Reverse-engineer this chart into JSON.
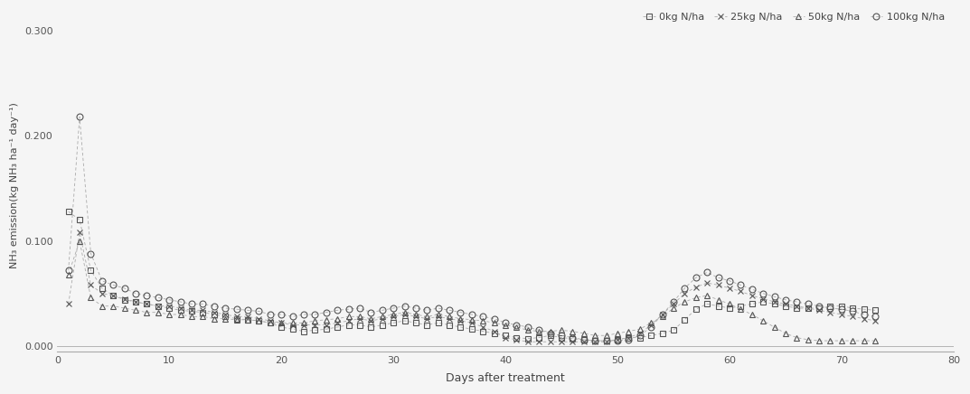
{
  "xlabel": "Days after treatment",
  "ylabel": "NH₃ emission(kg NH₃ ha⁻¹ day⁻¹)",
  "xlim": [
    0,
    80
  ],
  "ylim": [
    -0.005,
    0.31
  ],
  "yticks": [
    0.0,
    0.1,
    0.2,
    0.3
  ],
  "xticks": [
    0,
    10,
    20,
    30,
    40,
    50,
    60,
    70,
    80
  ],
  "legend_labels": [
    "0kg N/ha",
    "25kg N/ha",
    "50kg N/ha",
    "100kg N/ha"
  ],
  "series": {
    "0kg": {
      "x": [
        1,
        2,
        3,
        4,
        5,
        6,
        7,
        8,
        9,
        10,
        11,
        12,
        13,
        14,
        15,
        16,
        17,
        18,
        19,
        20,
        21,
        22,
        23,
        24,
        25,
        26,
        27,
        28,
        29,
        30,
        31,
        32,
        33,
        34,
        35,
        36,
        37,
        38,
        39,
        40,
        41,
        42,
        43,
        44,
        45,
        46,
        47,
        48,
        49,
        50,
        51,
        52,
        53,
        54,
        55,
        56,
        57,
        58,
        59,
        60,
        61,
        62,
        63,
        64,
        65,
        66,
        67,
        68,
        69,
        70,
        71,
        72,
        73
      ],
      "y": [
        0.128,
        0.12,
        0.072,
        0.055,
        0.048,
        0.044,
        0.042,
        0.04,
        0.038,
        0.036,
        0.034,
        0.033,
        0.032,
        0.03,
        0.028,
        0.026,
        0.025,
        0.024,
        0.022,
        0.018,
        0.016,
        0.014,
        0.015,
        0.016,
        0.018,
        0.02,
        0.02,
        0.018,
        0.02,
        0.022,
        0.024,
        0.022,
        0.02,
        0.022,
        0.02,
        0.018,
        0.016,
        0.014,
        0.012,
        0.01,
        0.008,
        0.007,
        0.008,
        0.01,
        0.008,
        0.007,
        0.006,
        0.005,
        0.005,
        0.006,
        0.008,
        0.008,
        0.01,
        0.012,
        0.015,
        0.025,
        0.035,
        0.04,
        0.038,
        0.036,
        0.038,
        0.04,
        0.042,
        0.04,
        0.038,
        0.036,
        0.036,
        0.036,
        0.038,
        0.038,
        0.036,
        0.035,
        0.034
      ]
    },
    "25kg": {
      "x": [
        1,
        2,
        3,
        4,
        5,
        6,
        7,
        8,
        9,
        10,
        11,
        12,
        13,
        14,
        15,
        16,
        17,
        18,
        19,
        20,
        21,
        22,
        23,
        24,
        25,
        26,
        27,
        28,
        29,
        30,
        31,
        32,
        33,
        34,
        35,
        36,
        37,
        38,
        39,
        40,
        41,
        42,
        43,
        44,
        45,
        46,
        47,
        48,
        49,
        50,
        51,
        52,
        53,
        54,
        55,
        56,
        57,
        58,
        59,
        60,
        61,
        62,
        63,
        64,
        65,
        66,
        67,
        68,
        69,
        70,
        71,
        72,
        73
      ],
      "y": [
        0.04,
        0.108,
        0.058,
        0.05,
        0.048,
        0.045,
        0.042,
        0.04,
        0.038,
        0.038,
        0.036,
        0.034,
        0.034,
        0.032,
        0.03,
        0.028,
        0.028,
        0.026,
        0.024,
        0.022,
        0.02,
        0.02,
        0.02,
        0.02,
        0.022,
        0.024,
        0.026,
        0.024,
        0.026,
        0.028,
        0.03,
        0.028,
        0.026,
        0.028,
        0.026,
        0.024,
        0.022,
        0.018,
        0.014,
        0.008,
        0.006,
        0.004,
        0.004,
        0.004,
        0.004,
        0.004,
        0.004,
        0.004,
        0.004,
        0.006,
        0.008,
        0.012,
        0.02,
        0.03,
        0.04,
        0.05,
        0.056,
        0.06,
        0.058,
        0.055,
        0.052,
        0.048,
        0.045,
        0.042,
        0.04,
        0.038,
        0.036,
        0.034,
        0.032,
        0.03,
        0.028,
        0.026,
        0.024
      ]
    },
    "50kg": {
      "x": [
        1,
        2,
        3,
        4,
        5,
        6,
        7,
        8,
        9,
        10,
        11,
        12,
        13,
        14,
        15,
        16,
        17,
        18,
        19,
        20,
        21,
        22,
        23,
        24,
        25,
        26,
        27,
        28,
        29,
        30,
        31,
        32,
        33,
        34,
        35,
        36,
        37,
        38,
        39,
        40,
        41,
        42,
        43,
        44,
        45,
        46,
        47,
        48,
        49,
        50,
        51,
        52,
        53,
        54,
        55,
        56,
        57,
        58,
        59,
        60,
        61,
        62,
        63,
        64,
        65,
        66,
        67,
        68,
        69,
        70,
        71,
        72,
        73
      ],
      "y": [
        0.068,
        0.1,
        0.046,
        0.038,
        0.038,
        0.036,
        0.034,
        0.032,
        0.032,
        0.03,
        0.03,
        0.028,
        0.028,
        0.026,
        0.026,
        0.025,
        0.025,
        0.024,
        0.022,
        0.022,
        0.022,
        0.022,
        0.024,
        0.025,
        0.026,
        0.028,
        0.028,
        0.026,
        0.028,
        0.03,
        0.032,
        0.03,
        0.028,
        0.03,
        0.028,
        0.026,
        0.025,
        0.024,
        0.022,
        0.02,
        0.018,
        0.015,
        0.014,
        0.014,
        0.015,
        0.014,
        0.012,
        0.01,
        0.01,
        0.012,
        0.014,
        0.016,
        0.022,
        0.028,
        0.036,
        0.042,
        0.046,
        0.048,
        0.044,
        0.04,
        0.035,
        0.03,
        0.024,
        0.018,
        0.012,
        0.008,
        0.006,
        0.005,
        0.005,
        0.005,
        0.005,
        0.005,
        0.005
      ]
    },
    "100kg": {
      "x": [
        1,
        2,
        3,
        4,
        5,
        6,
        7,
        8,
        9,
        10,
        11,
        12,
        13,
        14,
        15,
        16,
        17,
        18,
        19,
        20,
        21,
        22,
        23,
        24,
        25,
        26,
        27,
        28,
        29,
        30,
        31,
        32,
        33,
        34,
        35,
        36,
        37,
        38,
        39,
        40,
        41,
        42,
        43,
        44,
        45,
        46,
        47,
        48,
        49,
        50,
        51,
        52,
        53,
        54,
        55,
        56,
        57,
        58,
        59,
        60,
        61,
        62,
        63,
        64,
        65,
        66,
        67,
        68,
        69,
        70,
        71,
        72,
        73
      ],
      "y": [
        0.072,
        0.218,
        0.088,
        0.062,
        0.058,
        0.055,
        0.05,
        0.048,
        0.046,
        0.044,
        0.042,
        0.04,
        0.04,
        0.038,
        0.036,
        0.035,
        0.034,
        0.033,
        0.03,
        0.03,
        0.028,
        0.03,
        0.03,
        0.032,
        0.034,
        0.035,
        0.036,
        0.032,
        0.034,
        0.036,
        0.038,
        0.036,
        0.034,
        0.036,
        0.034,
        0.032,
        0.03,
        0.028,
        0.026,
        0.022,
        0.02,
        0.018,
        0.015,
        0.012,
        0.01,
        0.008,
        0.006,
        0.005,
        0.005,
        0.005,
        0.006,
        0.01,
        0.018,
        0.03,
        0.042,
        0.055,
        0.065,
        0.07,
        0.065,
        0.062,
        0.058,
        0.054,
        0.05,
        0.047,
        0.044,
        0.042,
        0.04,
        0.038,
        0.036,
        0.035,
        0.033,
        0.03,
        0.028
      ]
    }
  },
  "line_color": "#aaaaaa",
  "marker_color": "#555555",
  "fig_width": 10.73,
  "fig_height": 4.36,
  "background_color": "#f5f5f5"
}
